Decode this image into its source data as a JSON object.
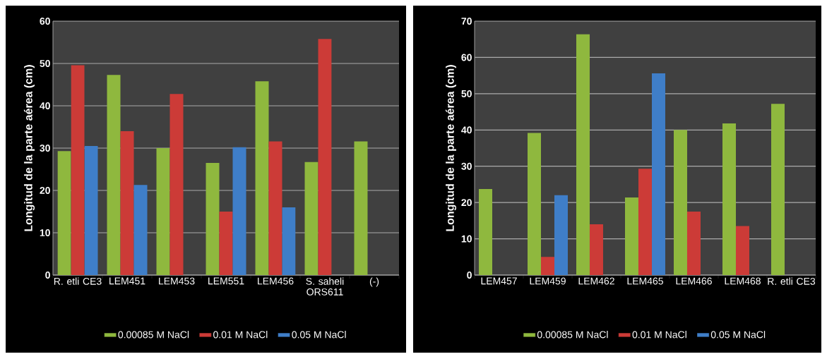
{
  "chart_data": [
    {
      "type": "bar",
      "ylabel": "Longitud de la parte aérea (cm)",
      "categories": [
        "R. etli CE3",
        "LEM451",
        "LEM453",
        "LEM551",
        "LEM456",
        "S. saheli ORS611",
        "(-)"
      ],
      "series": [
        {
          "name": "0.00085 M NaCl",
          "color": "#8fb83e",
          "values": [
            29.3,
            47.3,
            30,
            26.5,
            45.8,
            26.7,
            31.6
          ]
        },
        {
          "name": "0.01 M NaCl",
          "color": "#cc3b37",
          "values": [
            49.6,
            34,
            42.8,
            15,
            31.6,
            55.8,
            null
          ]
        },
        {
          "name": "0.05 M NaCl",
          "color": "#3f7ec8",
          "values": [
            30.5,
            21.3,
            null,
            30.2,
            16,
            null,
            null
          ]
        }
      ],
      "ylim": [
        0,
        60
      ],
      "yticks": [
        0,
        10,
        20,
        30,
        40,
        50,
        60
      ],
      "grid": "y",
      "legend": "bottom"
    },
    {
      "type": "bar",
      "ylabel": "Longitud de la parte aérea (cm)",
      "categories": [
        "LEM457",
        "LEM459",
        "LEM462",
        "LEM465",
        "LEM466",
        "LEM468",
        "R. etli CE3"
      ],
      "series": [
        {
          "name": "0.00085 M NaCl",
          "color": "#8fb83e",
          "values": [
            23.7,
            39.2,
            66.4,
            21.4,
            40,
            41.8,
            47.2
          ]
        },
        {
          "name": "0.01 M NaCl",
          "color": "#cc3b37",
          "values": [
            null,
            5,
            14,
            29.3,
            17.5,
            13.5,
            null
          ]
        },
        {
          "name": "0.05 M NaCl",
          "color": "#3f7ec8",
          "values": [
            null,
            22,
            null,
            55.6,
            null,
            null,
            null
          ]
        }
      ],
      "ylim": [
        0,
        70
      ],
      "yticks": [
        0,
        10,
        20,
        30,
        40,
        50,
        60,
        70
      ],
      "grid": "y",
      "legend": "bottom"
    }
  ]
}
